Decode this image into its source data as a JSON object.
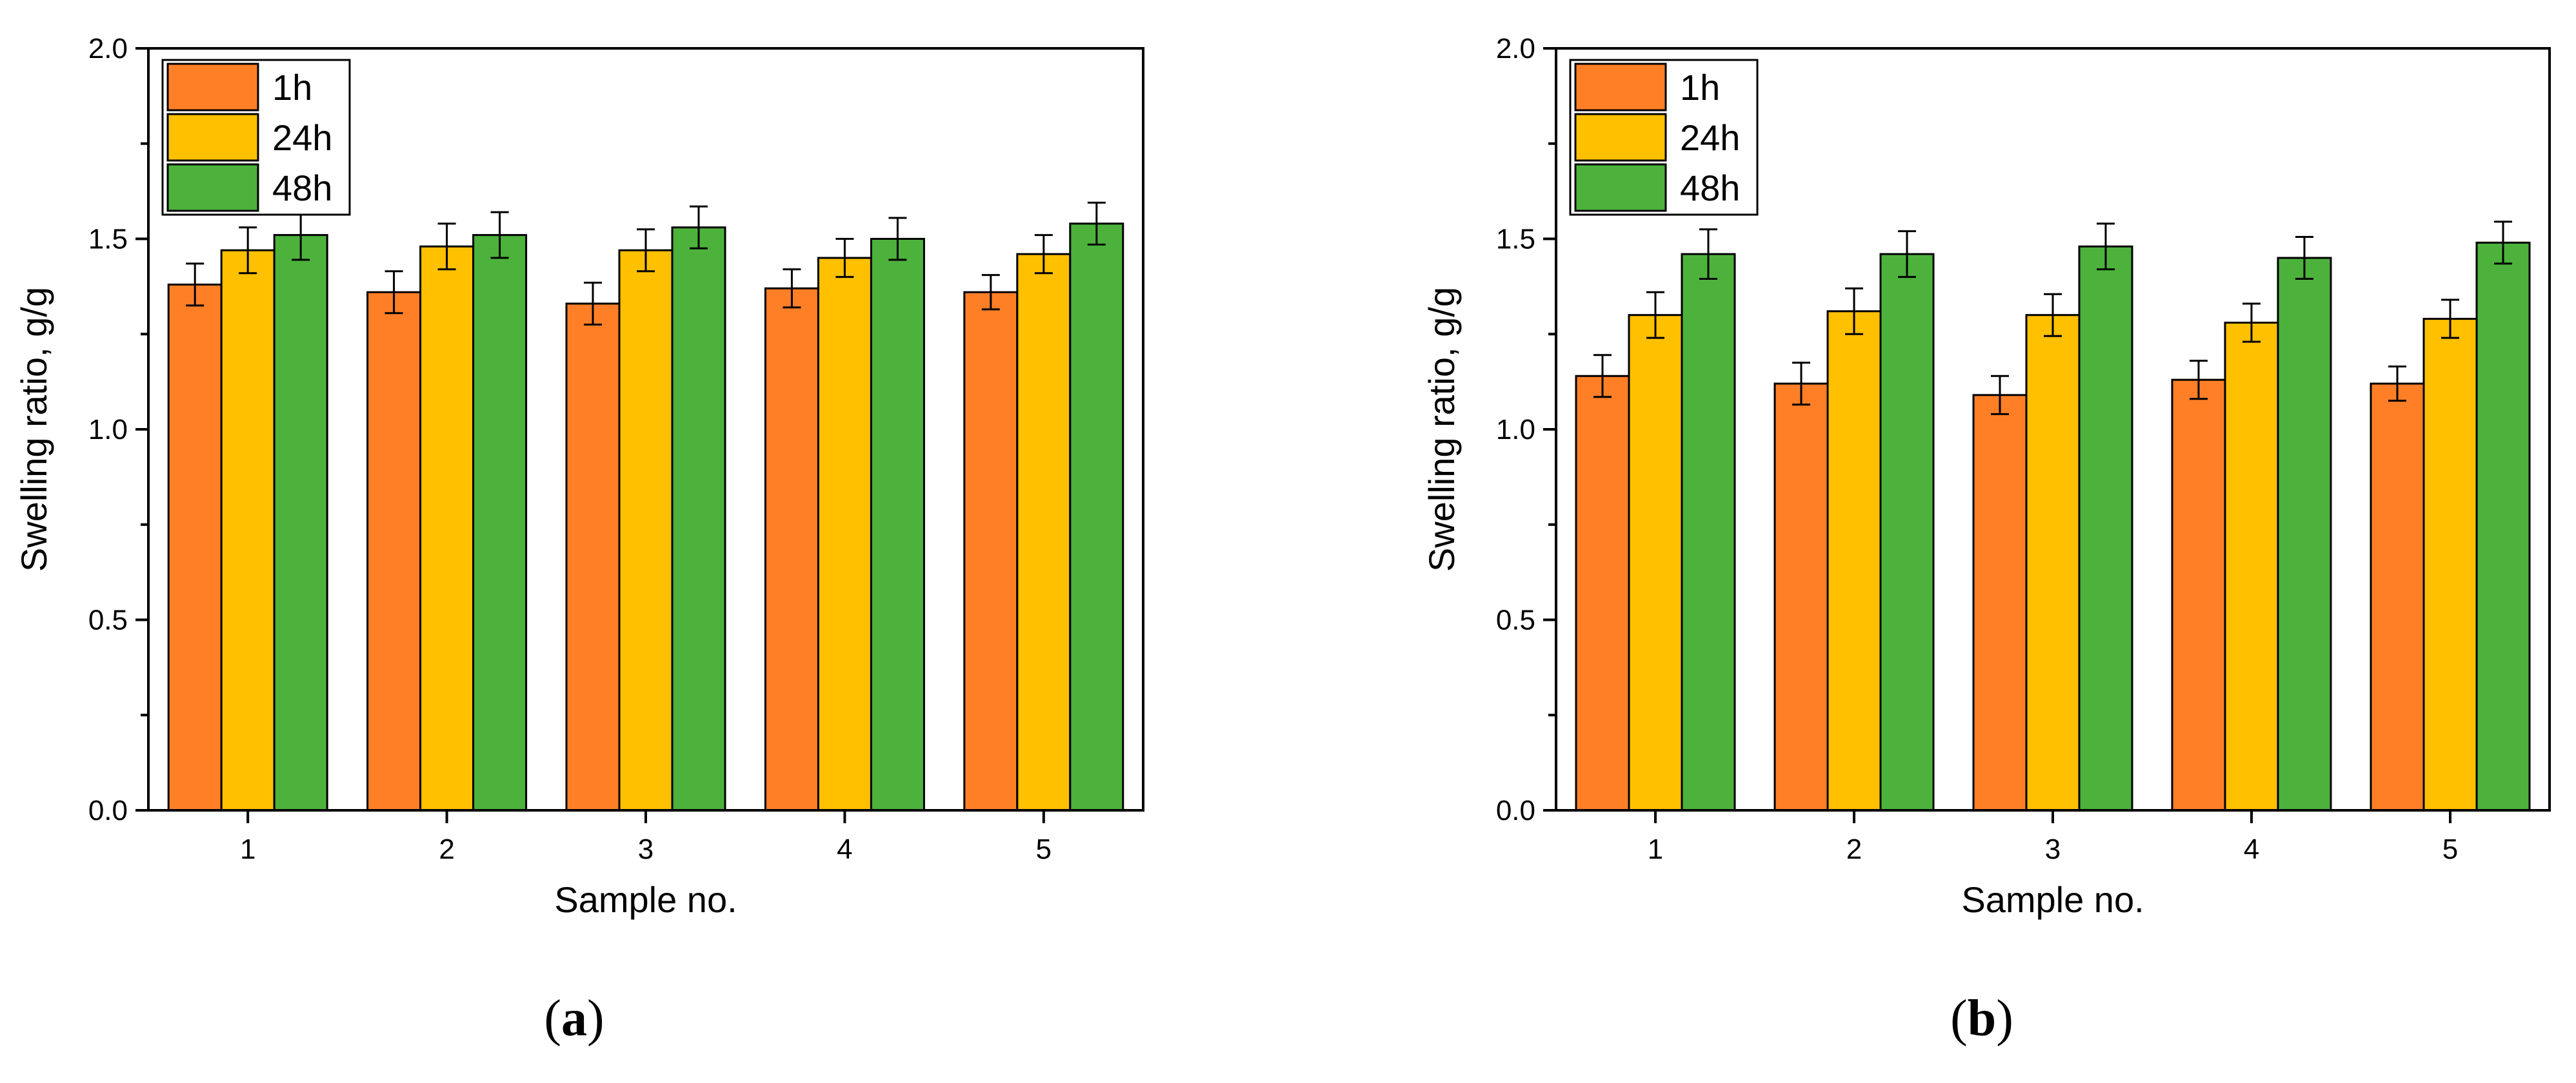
{
  "chart_data": [
    {
      "type": "bar",
      "panel_label": "a",
      "title": "",
      "xlabel": "Sample no.",
      "ylabel": "Swelling ratio, g/g",
      "categories": [
        "1",
        "2",
        "3",
        "4",
        "5"
      ],
      "ylim": [
        0,
        2.0
      ],
      "yticks": [
        "0.0",
        "0.5",
        "1.0",
        "1.5",
        "2.0"
      ],
      "legend_position": "top-left",
      "grid": false,
      "series": [
        {
          "name": "1h",
          "color": "#FF7F27",
          "values": [
            1.38,
            1.36,
            1.33,
            1.37,
            1.36
          ],
          "errors": [
            0.055,
            0.055,
            0.055,
            0.05,
            0.045
          ]
        },
        {
          "name": "24h",
          "color": "#FFC000",
          "values": [
            1.47,
            1.48,
            1.47,
            1.45,
            1.46
          ],
          "errors": [
            0.06,
            0.06,
            0.055,
            0.05,
            0.05
          ]
        },
        {
          "name": "48h",
          "color": "#4CB23C",
          "values": [
            1.51,
            1.51,
            1.53,
            1.5,
            1.54
          ],
          "errors": [
            0.065,
            0.06,
            0.055,
            0.055,
            0.055
          ]
        }
      ]
    },
    {
      "type": "bar",
      "panel_label": "b",
      "title": "",
      "xlabel": "Sample no.",
      "ylabel": "Swelling ratio, g/g",
      "categories": [
        "1",
        "2",
        "3",
        "4",
        "5"
      ],
      "ylim": [
        0,
        2.0
      ],
      "yticks": [
        "0.0",
        "0.5",
        "1.0",
        "1.5",
        "2.0"
      ],
      "legend_position": "top-left",
      "grid": false,
      "series": [
        {
          "name": "1h",
          "color": "#FF7F27",
          "values": [
            1.14,
            1.12,
            1.09,
            1.13,
            1.12
          ],
          "errors": [
            0.055,
            0.055,
            0.05,
            0.05,
            0.045
          ]
        },
        {
          "name": "24h",
          "color": "#FFC000",
          "values": [
            1.3,
            1.31,
            1.3,
            1.28,
            1.29
          ],
          "errors": [
            0.06,
            0.06,
            0.055,
            0.05,
            0.05
          ]
        },
        {
          "name": "48h",
          "color": "#4CB23C",
          "values": [
            1.46,
            1.46,
            1.48,
            1.45,
            1.49
          ],
          "errors": [
            0.065,
            0.06,
            0.06,
            0.055,
            0.055
          ]
        }
      ]
    }
  ]
}
